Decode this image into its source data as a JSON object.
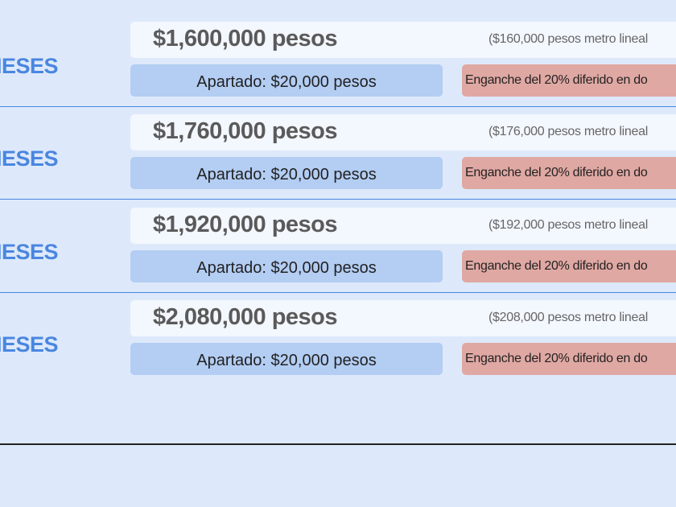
{
  "rows": [
    {
      "term": "MESES",
      "price": "$1,600,000 pesos",
      "per_meter": "($160,000 pesos metro  lineal",
      "deposit": "Apartado: $20,000 pesos",
      "down_payment": "Enganche del 20% diferido en do"
    },
    {
      "term": "MESES",
      "price": "$1,760,000 pesos",
      "per_meter": "($176,000 pesos metro lineal",
      "deposit": "Apartado: $20,000 pesos",
      "down_payment": "Enganche del 20% diferido en do"
    },
    {
      "term": "MESES",
      "price": "$1,920,000 pesos",
      "per_meter": "($192,000 pesos metro lineal",
      "deposit": "Apartado: $20,000 pesos",
      "down_payment": "Enganche del 20% diferido en do"
    },
    {
      "term": "MESES",
      "price": "$2,080,000 pesos",
      "per_meter": "($208,000 pesos metro lineal",
      "deposit": "Apartado: $20,000 pesos",
      "down_payment": "Enganche del 20% diferido en do"
    }
  ]
}
